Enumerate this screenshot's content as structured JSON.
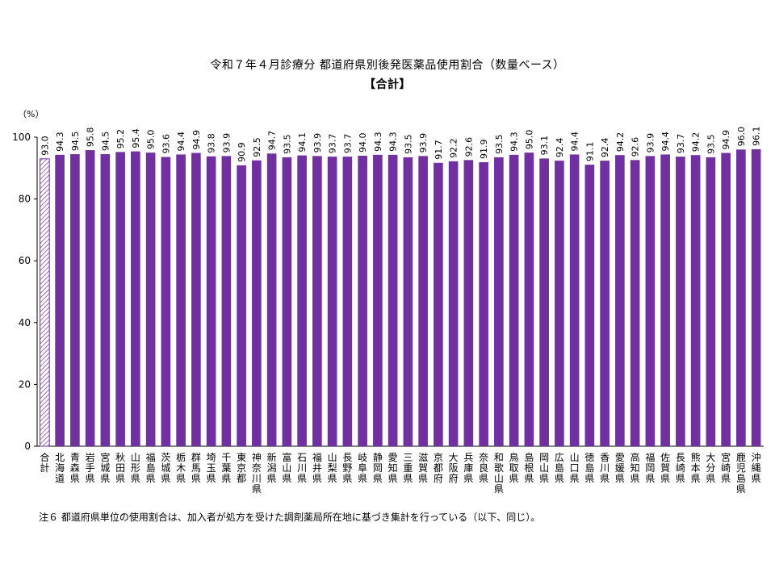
{
  "chart_data": {
    "type": "bar",
    "title": "令和７年４月診療分 都道府県別後発医薬品使用割合（数量ベース）",
    "subtitle": "【合計】",
    "ylabel": "（%）",
    "ylim": [
      0,
      100
    ],
    "yticks": [
      0,
      20,
      40,
      60,
      80,
      100
    ],
    "grid": false,
    "categories": [
      "合計",
      "北海道",
      "青森県",
      "岩手県",
      "宮城県",
      "秋田県",
      "山形県",
      "福島県",
      "茨城県",
      "栃木県",
      "群馬県",
      "埼玉県",
      "千葉県",
      "東京都",
      "神奈川県",
      "新潟県",
      "富山県",
      "石川県",
      "福井県",
      "山梨県",
      "長野県",
      "岐阜県",
      "静岡県",
      "愛知県",
      "三重県",
      "滋賀県",
      "京都府",
      "大阪府",
      "兵庫県",
      "奈良県",
      "和歌山県",
      "鳥取県",
      "島根県",
      "岡山県",
      "広島県",
      "山口県",
      "徳島県",
      "香川県",
      "愛媛県",
      "高知県",
      "福岡県",
      "佐賀県",
      "長崎県",
      "熊本県",
      "大分県",
      "宮崎県",
      "鹿児島県",
      "沖縄県"
    ],
    "values": [
      93.0,
      94.3,
      94.5,
      95.8,
      94.5,
      95.2,
      95.4,
      95.0,
      93.6,
      94.4,
      94.9,
      93.8,
      93.9,
      90.9,
      92.5,
      94.7,
      93.5,
      94.1,
      93.9,
      93.7,
      93.7,
      94.0,
      94.3,
      94.3,
      93.5,
      93.9,
      91.7,
      92.2,
      92.6,
      91.9,
      93.5,
      94.3,
      95.0,
      93.1,
      92.4,
      94.4,
      91.1,
      92.4,
      94.2,
      92.6,
      93.9,
      94.4,
      93.7,
      94.2,
      93.5,
      94.9,
      96.0,
      96.1
    ],
    "value_labels": [
      "93.0",
      "94.3",
      "94.5",
      "95.8",
      "94.5",
      "95.2",
      "95.4",
      "95.0",
      "93.6",
      "94.4",
      "94.9",
      "93.8",
      "93.9",
      "90.9",
      "92.5",
      "94.7",
      "93.5",
      "94.1",
      "93.9",
      "93.7",
      "93.7",
      "94.0",
      "94.3",
      "94.3",
      "93.5",
      "93.9",
      "91.7",
      "92.2",
      "92.6",
      "91.9",
      "93.5",
      "94.3",
      "95.0",
      "93.1",
      "92.4",
      "94.4",
      "91.1",
      "92.4",
      "94.2",
      "92.6",
      "93.9",
      "94.4",
      "93.7",
      "94.2",
      "93.5",
      "94.9",
      "96.0",
      "96.1"
    ],
    "highlight_index": 0,
    "colors": {
      "bar": "#7030A0",
      "total_stroke": "#7030A0",
      "axis": "#000000"
    }
  },
  "footnote": "注６ 都道府県単位の使用割合は、加入者が処方を受けた調剤薬局所在地に基づき集計を行っている（以下、同じ）。"
}
